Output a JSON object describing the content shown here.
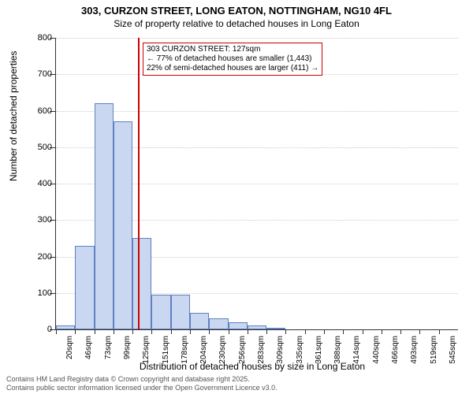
{
  "title": "303, CURZON STREET, LONG EATON, NOTTINGHAM, NG10 4FL",
  "subtitle": "Size of property relative to detached houses in Long Eaton",
  "y_axis_title": "Number of detached properties",
  "x_axis_title": "Distribution of detached houses by size in Long Eaton",
  "chart": {
    "type": "histogram",
    "y_max": 800,
    "y_ticks": [
      0,
      100,
      200,
      300,
      400,
      500,
      600,
      700,
      800
    ],
    "x_labels": [
      "20sqm",
      "46sqm",
      "73sqm",
      "99sqm",
      "125sqm",
      "151sqm",
      "178sqm",
      "204sqm",
      "230sqm",
      "256sqm",
      "283sqm",
      "309sqm",
      "335sqm",
      "361sqm",
      "388sqm",
      "414sqm",
      "440sqm",
      "466sqm",
      "493sqm",
      "519sqm",
      "545sqm"
    ],
    "bars": [
      10,
      230,
      620,
      570,
      250,
      95,
      95,
      45,
      30,
      20,
      10,
      5,
      0,
      0,
      0,
      0,
      0,
      0,
      0,
      0,
      0
    ],
    "bar_fill": "#c9d8f0",
    "bar_stroke": "#6080c0",
    "background_color": "#ffffff",
    "grid_color": "#cccccc",
    "marker": {
      "position_sqm": 127,
      "color": "#cc0000",
      "line1": "303 CURZON STREET: 127sqm",
      "line2": "← 77% of detached houses are smaller (1,443)",
      "line3": "22% of semi-detached houses are larger (411) →"
    }
  },
  "footer_line1": "Contains HM Land Registry data © Crown copyright and database right 2025.",
  "footer_line2": "Contains public sector information licensed under the Open Government Licence v3.0."
}
